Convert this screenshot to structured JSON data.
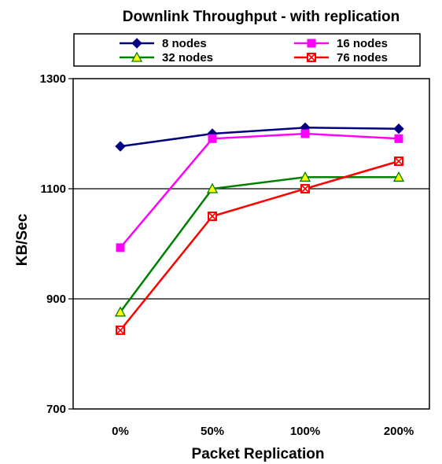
{
  "chart_data": {
    "type": "line",
    "title": "Downlink Throughput - with replication",
    "xlabel": "Packet Replication",
    "ylabel": "KB/Sec",
    "categories": [
      "0%",
      "50%",
      "100%",
      "200%"
    ],
    "ylim": [
      700,
      1300
    ],
    "yticks": [
      700,
      900,
      1100,
      1300
    ],
    "grid": "horizontal",
    "legend_position": "top",
    "series": [
      {
        "name": "8 nodes",
        "marker": "diamond",
        "color": "#000080",
        "values": [
          1177,
          1200,
          1211,
          1209
        ]
      },
      {
        "name": "16 nodes",
        "marker": "square",
        "color": "#ff00ff",
        "values": [
          993,
          1191,
          1200,
          1191
        ]
      },
      {
        "name": "32 nodes",
        "marker": "triangle",
        "color": "#008000",
        "values": [
          876,
          1100,
          1121,
          1121
        ]
      },
      {
        "name": "76 nodes",
        "marker": "x-square",
        "color": "#ff0000",
        "values": [
          843,
          1050,
          1100,
          1150
        ]
      }
    ]
  }
}
